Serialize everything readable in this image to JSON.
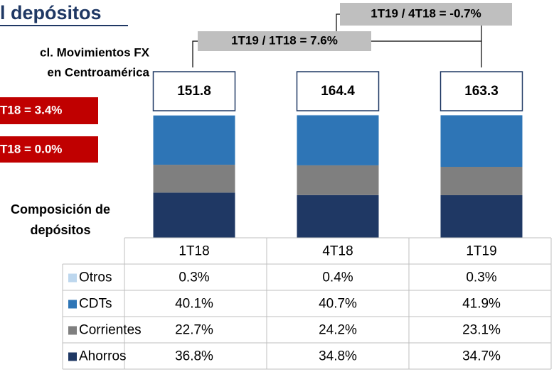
{
  "title": "l depósitos",
  "note": [
    "cl. Movimientos FX",
    "en Centroamérica"
  ],
  "growth_boxes": [
    "T18 = 3.4%",
    "T18 = 0.0%"
  ],
  "table_title": [
    "Composición de",
    "depósitos"
  ],
  "chart_data": {
    "type": "stacked_bar_100",
    "categories": [
      "1T18",
      "4T18",
      "1T19"
    ],
    "totals": [
      151.8,
      164.4,
      163.3
    ],
    "annotations": [
      "1T19 / 4T18 = -0.7%",
      "1T19 / 1T18 = 7.6%"
    ],
    "ylim": [
      0,
      100
    ],
    "series": [
      {
        "name": "Otros",
        "color": "#bdd7ee",
        "values": [
          0.3,
          0.4,
          0.3
        ],
        "value_labels": [
          "0.3%",
          "0.4%",
          "0.3%"
        ]
      },
      {
        "name": "CDTs",
        "color": "#2e75b6",
        "values": [
          40.1,
          40.7,
          41.9
        ],
        "value_labels": [
          "40.1%",
          "40.7%",
          "41.9%"
        ]
      },
      {
        "name": "Corrientes",
        "color": "#7f7f7f",
        "values": [
          22.7,
          24.2,
          23.1
        ],
        "value_labels": [
          "22.7%",
          "24.2%",
          "23.1%"
        ]
      },
      {
        "name": "Ahorros",
        "color": "#1f3864",
        "values": [
          36.8,
          34.8,
          34.7
        ],
        "value_labels": [
          "36.8%",
          "34.8%",
          "34.7%"
        ]
      }
    ]
  }
}
